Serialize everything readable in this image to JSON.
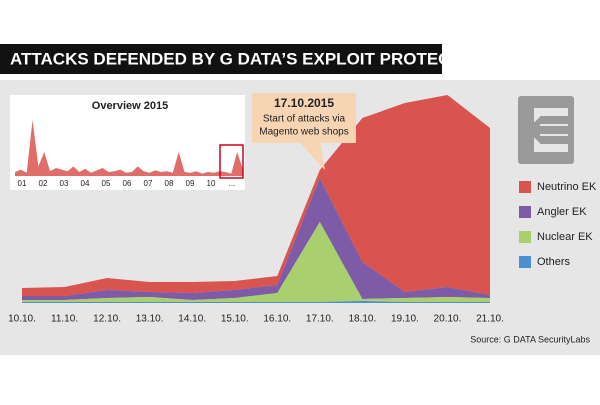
{
  "chart_data": {
    "type": "stacked_area",
    "title": "ATTACKS DEFENDED BY G DATA’S EXPLOIT PROTECTION",
    "categories": [
      "10.10.",
      "11.10.",
      "12.10.",
      "13.10.",
      "14.10.",
      "15.10.",
      "16.10.",
      "17.10.",
      "18.10.",
      "19.10.",
      "20.10.",
      "21.10."
    ],
    "series": [
      {
        "name": "Others",
        "color": "#4a8fd0",
        "values": [
          1,
          1,
          1,
          1,
          1,
          1,
          1,
          1,
          2,
          1,
          1,
          1
        ]
      },
      {
        "name": "Nuclear EK",
        "color": "#a9cf6e",
        "values": [
          2,
          2,
          4,
          5,
          2,
          4,
          9,
          80,
          2,
          4,
          5,
          4
        ]
      },
      {
        "name": "Angler EK",
        "color": "#7d5ba6",
        "values": [
          4,
          4,
          8,
          5,
          7,
          8,
          8,
          44,
          37,
          6,
          10,
          3
        ]
      },
      {
        "name": "Neutrino EK",
        "color": "#d9534f",
        "values": [
          8,
          9,
          12,
          10,
          11,
          9,
          9,
          8,
          144,
          189,
          192,
          167
        ]
      }
    ],
    "ylim": [
      0,
      220
    ],
    "annotation": {
      "title": "17.10.2015",
      "lines": [
        "Start of attacks via",
        "Magento web shops"
      ]
    },
    "source": "Source: G DATA SecurityLabs",
    "inset": {
      "title": "Overview 2015",
      "categories": [
        "01",
        "02",
        "03",
        "04",
        "05",
        "06",
        "07",
        "08",
        "09",
        "10",
        "..."
      ],
      "color": "#d9534f",
      "values": [
        5,
        8,
        4,
        70,
        12,
        30,
        6,
        10,
        8,
        6,
        12,
        5,
        9,
        4,
        7,
        10,
        5,
        6,
        8,
        4,
        5,
        12,
        6,
        4,
        7,
        5,
        6,
        4,
        30,
        5,
        4,
        6,
        3,
        5,
        4,
        6,
        5,
        3,
        30,
        8
      ],
      "ylim": [
        0,
        80
      ]
    }
  }
}
